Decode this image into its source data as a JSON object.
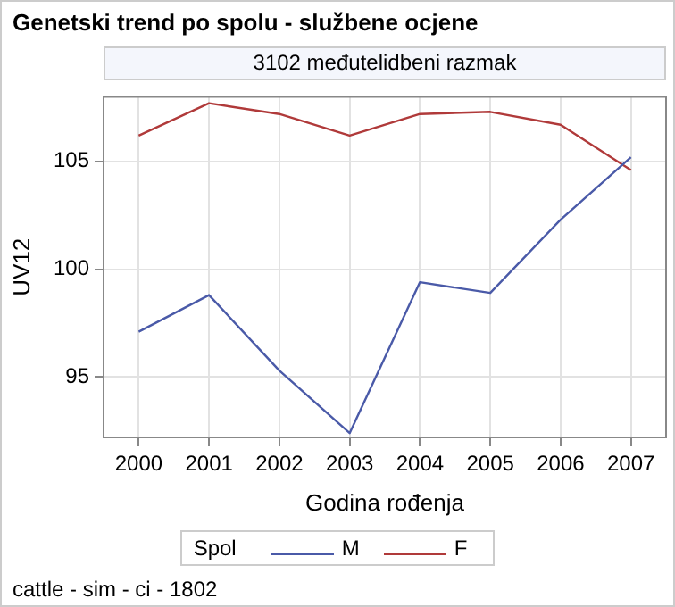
{
  "chart_data": {
    "type": "line",
    "title": "Genetski trend po spolu - službene ocjene",
    "subtitle": "3102 međutelidbeni razmak",
    "xlabel": "Godina rođenja",
    "ylabel": "UV12",
    "legend_title": "Spol",
    "annotations": [
      "cattle - sim - ci - 1802"
    ],
    "categories": [
      "2000",
      "2001",
      "2002",
      "2003",
      "2004",
      "2005",
      "2006",
      "2007"
    ],
    "series": [
      {
        "name": "M",
        "color": "#4a5aa8",
        "values": [
          97.1,
          98.8,
          95.3,
          92.4,
          99.4,
          98.9,
          102.3,
          105.2
        ]
      },
      {
        "name": "F",
        "color": "#b03a3a",
        "values": [
          106.2,
          107.7,
          107.2,
          106.2,
          107.2,
          107.3,
          106.7,
          104.6
        ]
      }
    ],
    "ylim": [
      92.2,
      108
    ],
    "yticks": [
      95,
      100,
      105
    ],
    "grid": true,
    "legend": "bottom",
    "marker": "none",
    "line_style": "solid"
  }
}
